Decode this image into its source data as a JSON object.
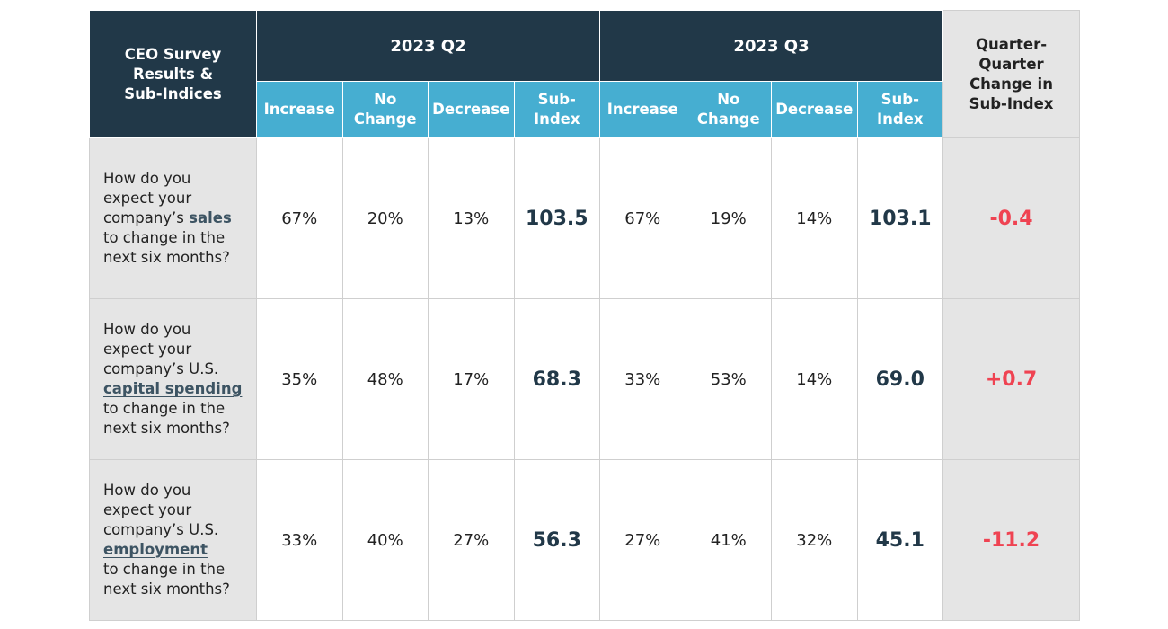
{
  "table": {
    "corner_label": [
      "CEO Survey",
      "Results &",
      "Sub-Indices"
    ],
    "quarters": [
      "2023 Q2",
      "2023 Q3"
    ],
    "sub_headers": [
      [
        "Increase"
      ],
      [
        "No",
        "Change"
      ],
      [
        "Decrease"
      ],
      [
        "Sub-",
        "Index"
      ]
    ],
    "change_header": [
      "Quarter-",
      "Quarter",
      "Change in",
      "Sub-Index"
    ]
  },
  "chart_data": {
    "type": "table",
    "columns": [
      "CEO Survey Results & Sub-Indices",
      "2023 Q2 Increase",
      "2023 Q2 No Change",
      "2023 Q2 Decrease",
      "2023 Q2 Sub-Index",
      "2023 Q3 Increase",
      "2023 Q3 No Change",
      "2023 Q3 Decrease",
      "2023 Q3 Sub-Index",
      "Quarter-Quarter Change in Sub-Index"
    ],
    "rows": [
      {
        "question_pre": [
          "How do you",
          "expect your",
          "company’s "
        ],
        "keyword": "sales",
        "question_post": [
          "to change in the",
          "next six months?"
        ],
        "q2": [
          "67%",
          "20%",
          "13%"
        ],
        "q2_subindex": "103.5",
        "q3": [
          "67%",
          "19%",
          "14%"
        ],
        "q3_subindex": "103.1",
        "change": "-0.4"
      },
      {
        "question_pre": [
          "How do you",
          "expect your",
          "company’s U.S."
        ],
        "keyword": "capital spending",
        "question_post": [
          "to change in the",
          "next six months?"
        ],
        "q2": [
          "35%",
          "48%",
          "17%"
        ],
        "q2_subindex": "68.3",
        "q3": [
          "33%",
          "53%",
          "14%"
        ],
        "q3_subindex": "69.0",
        "change": "+0.7"
      },
      {
        "question_pre": [
          "How do you",
          "expect your",
          "company’s U.S."
        ],
        "keyword": "employment",
        "question_post": [
          "to change in the",
          "next six months?"
        ],
        "q2": [
          "33%",
          "40%",
          "27%"
        ],
        "q2_subindex": "56.3",
        "q3": [
          "27%",
          "41%",
          "32%"
        ],
        "q3_subindex": "45.1",
        "change": "-11.2"
      }
    ]
  }
}
